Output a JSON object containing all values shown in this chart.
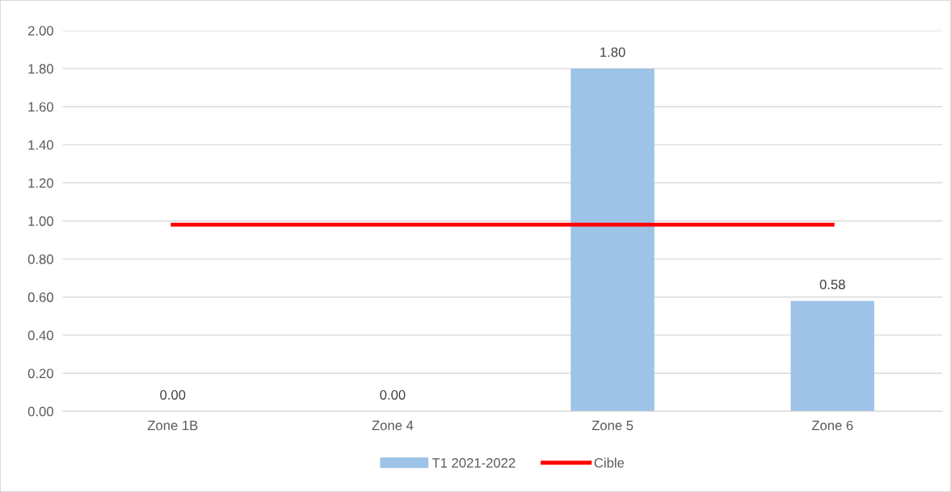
{
  "chart_data": {
    "type": "bar",
    "categories": [
      "Zone 1B",
      "Zone 4",
      "Zone 5",
      "Zone 6"
    ],
    "series": [
      {
        "name": "T1 2021-2022",
        "color": "#9dc3e6",
        "values": [
          0,
          0,
          1.8,
          0.58
        ],
        "value_labels": [
          "0.00",
          "0.00",
          "1.80",
          "0.58"
        ]
      },
      {
        "name": "Cible",
        "type": "line",
        "color": "#ff0000",
        "values": [
          0.98,
          0.98,
          0.98,
          0.98
        ]
      }
    ],
    "ylim": [
      0,
      2
    ],
    "yticks": [
      {
        "value": 0,
        "label": "0.00"
      },
      {
        "value": 0.2,
        "label": "0.20"
      },
      {
        "value": 0.4,
        "label": "0.40"
      },
      {
        "value": 0.6,
        "label": "0.60"
      },
      {
        "value": 0.8,
        "label": "0.80"
      },
      {
        "value": 1,
        "label": "1.00"
      },
      {
        "value": 1.2,
        "label": "1.20"
      },
      {
        "value": 1.4,
        "label": "1.40"
      },
      {
        "value": 1.6,
        "label": "1.60"
      },
      {
        "value": 1.8,
        "label": "1.80"
      },
      {
        "value": 2,
        "label": "2.00"
      }
    ],
    "grid": "y",
    "legend": "bottom",
    "marker": "none",
    "line_style": "solid"
  }
}
